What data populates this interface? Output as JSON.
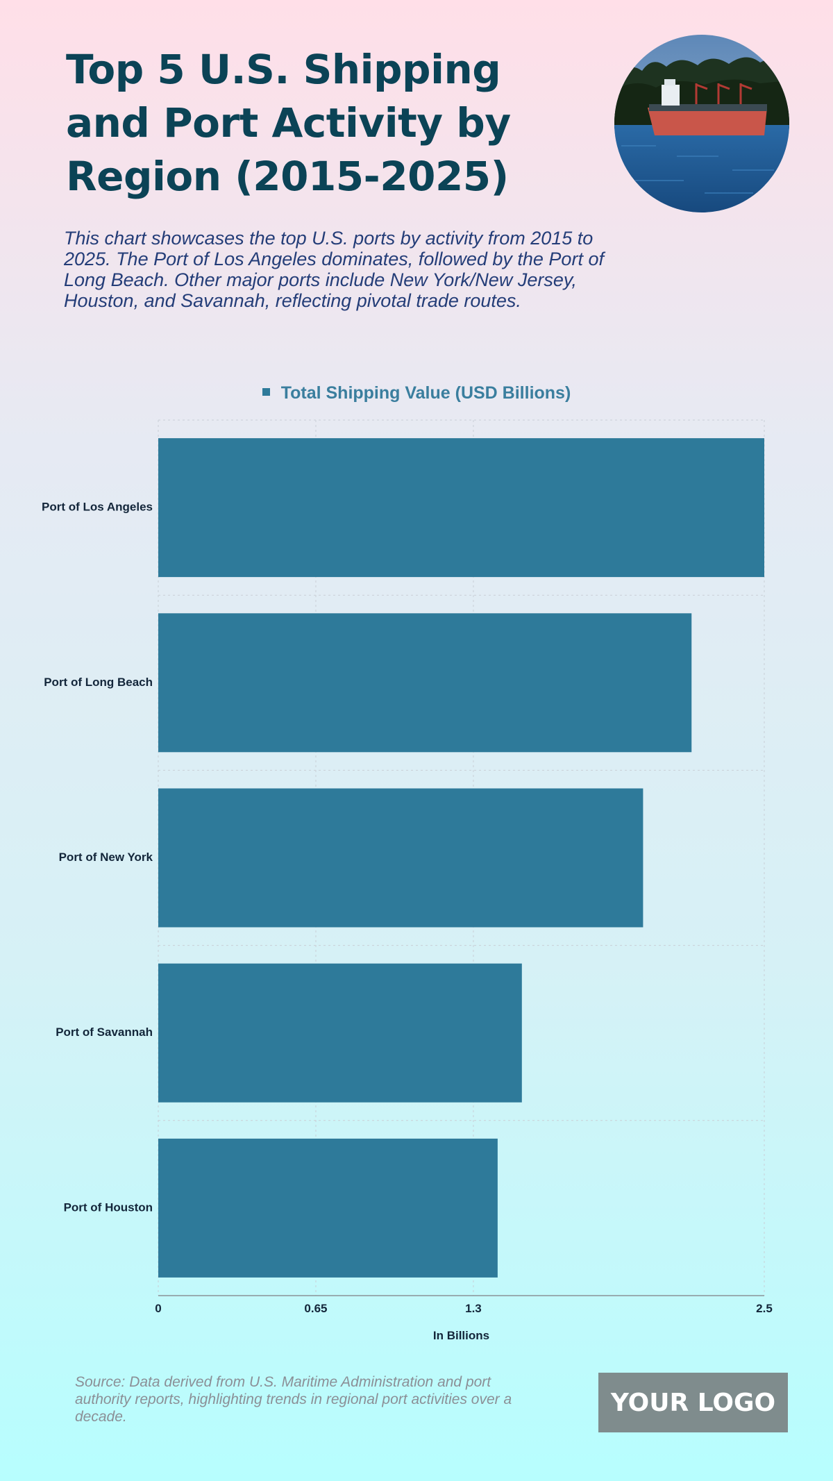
{
  "header": {
    "title": "Top 5 U.S. Shipping and Port Activity by Region (2015-2025)",
    "subtitle": "This chart showcases the top U.S. ports by activity from 2015 to 2025. The Port of Los Angeles dominates, followed by the Port of Long Beach. Other major ports include New York/New Jersey, Houston, and Savannah, reflecting pivotal trade routes."
  },
  "photo": {
    "icon": "cargo-ship-photo"
  },
  "chart_data": {
    "type": "bar",
    "orientation": "horizontal",
    "categories": [
      "Port of Los Angeles",
      "Port of Long Beach",
      "Port of New York",
      "Port of Savannah",
      "Port of Houston"
    ],
    "series": [
      {
        "name": "Total Shipping Value (USD Billions)",
        "values": [
          2.5,
          2.2,
          2.0,
          1.5,
          1.4
        ]
      }
    ],
    "xlabel": "In Billions",
    "ylabel": "",
    "xlim": [
      0,
      2.5
    ],
    "xticks": [
      0,
      0.65,
      1.3,
      2.5
    ],
    "xtick_labels": [
      "0",
      "0.65",
      "1.3",
      "2.5"
    ],
    "grid": true,
    "legend": "top-center",
    "bar_color": "#2e7a9a"
  },
  "footer": {
    "source": "Source: Data derived from U.S. Maritime Administration and port authority reports, highlighting trends in regional port activities over a decade.",
    "logo_text": "YOUR LOGO"
  }
}
